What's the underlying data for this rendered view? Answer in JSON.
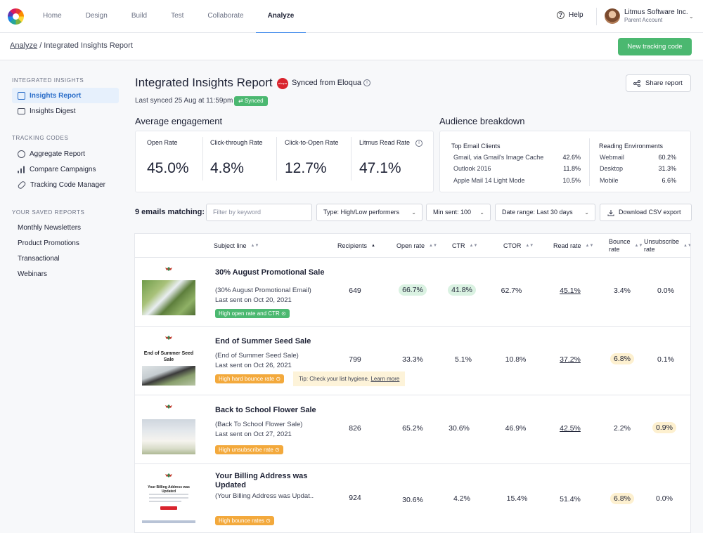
{
  "nav": {
    "tabs": [
      "Home",
      "Design",
      "Build",
      "Test",
      "Collaborate",
      "Analyze"
    ],
    "help": "Help",
    "account_name": "Litmus Software Inc.",
    "account_sub": "Parent Account"
  },
  "crumbs": {
    "link": "Analyze",
    "current": " / Integrated Insights Report"
  },
  "new_tracking_code": "New tracking code",
  "sidebar": {
    "head1": "Integrated Insights",
    "insights_report": "Insights Report",
    "insights_digest": "Insights Digest",
    "head2": "Tracking Codes",
    "aggregate": "Aggregate Report",
    "compare": "Compare Campaigns",
    "manager": "Tracking Code Manager",
    "head3": "Your Saved Reports",
    "saved": [
      "Monthly Newsletters",
      "Product Promotions",
      "Transactional",
      "Webinars"
    ]
  },
  "header": {
    "title": "Integrated Insights Report",
    "eloqua_mark": "eloqua",
    "synced_from": "Synced from Eloqua",
    "last_synced": "Last synced 25 Aug at 11:59pm",
    "synced_pill": "⇄ Synced",
    "share": "Share report"
  },
  "engagement": {
    "title": "Average engagement",
    "metrics": [
      {
        "label": "Open Rate",
        "value": "45.0%"
      },
      {
        "label": "Click-through Rate",
        "value": "4.8%"
      },
      {
        "label": "Click-to-Open Rate",
        "value": "12.7%"
      },
      {
        "label": "Litmus Read Rate",
        "value": "47.1%"
      }
    ]
  },
  "audience": {
    "title": "Audience breakdown",
    "clients_head": "Top Email Clients",
    "clients": [
      {
        "name": "Gmail, via Gmail's Image Cache",
        "value": "42.6%"
      },
      {
        "name": "Outlook 2016",
        "value": "11.8%"
      },
      {
        "name": "Apple Mail 14 Light Mode",
        "value": "10.5%"
      }
    ],
    "env_head": "Reading Environments",
    "envs": [
      {
        "name": "Webmail",
        "value": "60.2%"
      },
      {
        "name": "Desktop",
        "value": "31.3%"
      },
      {
        "name": "Mobile",
        "value": "6.6%"
      }
    ]
  },
  "filters": {
    "matching": "9 emails matching:",
    "keyword_placeholder": "Filter by keyword",
    "type": "Type:  High/Low performers",
    "min_sent": "Min sent: 100",
    "date_range": "Date range: Last 30 days",
    "download": "Download CSV export"
  },
  "table": {
    "headers": {
      "subject": "Subject line",
      "recipients": "Recipients",
      "open": "Open rate",
      "ctr": "CTR",
      "ctor": "CTOR",
      "read": "Read rate",
      "bounce": "Bounce rate",
      "unsub": "Unsubscribe rate"
    },
    "rows": [
      {
        "subject": "30% August Promotional Sale",
        "name": "(30% August Promotional Email)",
        "sent": "Last sent on Oct 20, 2021",
        "tag": "High open rate and CTR ⊙",
        "recipients": "649",
        "open": "66.7%",
        "ctr": "41.8%",
        "ctor": "62.7%",
        "read": "45.1%",
        "bounce": "3.4%",
        "unsub": "0.0%"
      },
      {
        "subject": "End of Summer Seed Sale",
        "thumb_text": "End of Summer Seed Sale",
        "name": "(End of Summer Seed Sale)",
        "sent": "Last sent on Oct 26, 2021",
        "tag": "High hard bounce rate ⊙",
        "tip": "Tip: Check your list hygiene.",
        "tip_link": "Learn more",
        "recipients": "799",
        "open": "33.3%",
        "ctr": "5.1%",
        "ctor": "10.8%",
        "read": "37.2%",
        "bounce": "6.8%",
        "unsub": "0.1%"
      },
      {
        "subject": "Back to School Flower Sale",
        "name": "(Back To School Flower Sale)",
        "sent": "Last sent on Oct 27, 2021",
        "tag": "High unsubscribe rate ⊙",
        "recipients": "826",
        "open": "65.2%",
        "ctr": "30.6%",
        "ctor": "46.9%",
        "read": "42.5%",
        "bounce": "2.2%",
        "unsub": "0.9%"
      },
      {
        "subject": "Your Billing Address was Updated",
        "thumb_text": "Your Billing Address was Updated",
        "name": "(Your Billing Address was Updat..",
        "tag": "High bounce rates ⊙",
        "recipients": "924",
        "open": "30.6%",
        "ctr": "4.2%",
        "ctor": "15.4%",
        "read": "51.4%",
        "bounce": "6.8%",
        "unsub": "0.0%"
      }
    ]
  },
  "colors": {
    "accent": "#2b7de9",
    "green": "#4bb870",
    "orange": "#f3a93c",
    "eloqua": "#d9232d"
  }
}
